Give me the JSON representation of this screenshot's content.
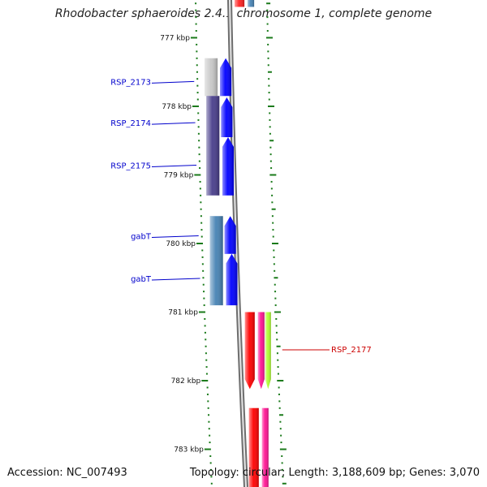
{
  "title": "Rhodobacter sphaeroides 2.4.1 chromosome 1, complete genome",
  "footer": {
    "accession": "Accession: NC_007493",
    "summary": "Topology: circular; Length: 3,188,609 bp; Genes: 3,070"
  },
  "colors": {
    "backbone": "#8c8c8c",
    "tick": "#1a7a1a",
    "label_blue": "#0000cc",
    "label_red": "#cc0000"
  },
  "ticks": [
    {
      "kbp": 777,
      "label": "777 kbp"
    },
    {
      "kbp": 778,
      "label": "778 kbp"
    },
    {
      "kbp": 779,
      "label": "779 kbp"
    },
    {
      "kbp": 780,
      "label": "780 kbp"
    },
    {
      "kbp": 781,
      "label": "781 kbp"
    },
    {
      "kbp": 782,
      "label": "782 kbp"
    },
    {
      "kbp": 783,
      "label": "783 kbp"
    }
  ],
  "view": {
    "start_kbp": 776.45,
    "end_kbp": 783.55
  },
  "features": [
    {
      "track": "right-outer",
      "start": 776.45,
      "end": 776.55,
      "color": "#ff2020"
    },
    {
      "track": "right-outer2",
      "start": 776.45,
      "end": 776.55,
      "color": "#4682b4"
    },
    {
      "track": "left-outer",
      "start": 777.3,
      "end": 777.85,
      "color": "#c8c8c8"
    },
    {
      "track": "left-inner",
      "start": 777.3,
      "end": 777.85,
      "color": "#0000ff",
      "strand": "+"
    },
    {
      "track": "left-outer",
      "start": 777.85,
      "end": 779.3,
      "color": "#483d8b"
    },
    {
      "track": "left-inner",
      "start": 777.87,
      "end": 778.45,
      "color": "#0000ff",
      "strand": "+"
    },
    {
      "track": "left-inner",
      "start": 778.45,
      "end": 779.3,
      "color": "#0000ff",
      "strand": "+"
    },
    {
      "track": "left-outer",
      "start": 779.6,
      "end": 780.9,
      "color": "#4682b4"
    },
    {
      "track": "left-inner",
      "start": 779.6,
      "end": 780.15,
      "color": "#0000ff",
      "strand": "+"
    },
    {
      "track": "left-inner",
      "start": 780.15,
      "end": 780.9,
      "color": "#0000ff",
      "strand": "+"
    },
    {
      "track": "right-outer",
      "start": 781.0,
      "end": 782.12,
      "color": "#ff0000",
      "strand": "-"
    },
    {
      "track": "right-outer2",
      "start": 781.0,
      "end": 782.12,
      "color": "#ff1493",
      "strand": "-"
    },
    {
      "track": "right-outer3",
      "start": 781.0,
      "end": 782.12,
      "color": "#adff2f",
      "strand": "-"
    },
    {
      "track": "right-outer",
      "start": 782.4,
      "end": 783.55,
      "color": "#ff0000"
    },
    {
      "track": "right-outer2",
      "start": 782.4,
      "end": 783.55,
      "color": "#ff1493"
    }
  ],
  "labels": [
    {
      "text": "RSP_2173",
      "side": "left",
      "kbp": 777.65,
      "color": "#0000cc"
    },
    {
      "text": "RSP_2174",
      "side": "left",
      "kbp": 778.25,
      "color": "#0000cc"
    },
    {
      "text": "RSP_2175",
      "side": "left",
      "kbp": 778.87,
      "color": "#0000cc"
    },
    {
      "text": "gabT",
      "side": "left",
      "kbp": 779.9,
      "color": "#0000cc"
    },
    {
      "text": "gabT",
      "side": "left",
      "kbp": 780.52,
      "color": "#0000cc"
    },
    {
      "text": "RSP_2177",
      "side": "right",
      "kbp": 781.55,
      "color": "#cc0000"
    }
  ]
}
